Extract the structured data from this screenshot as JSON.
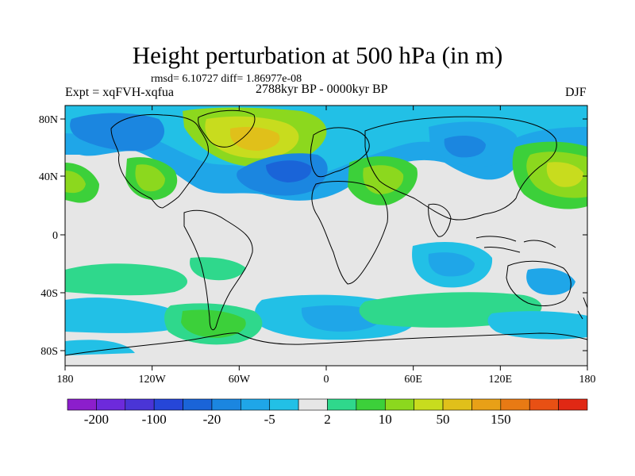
{
  "title": "Height perturbation at 500 hPa (in m)",
  "rmsd_line": "rmsd= 6.10727 diff= 1.86977e-08",
  "experiment": "Expt = xqFVH-xqfua",
  "period": "2788kyr BP - 0000kyr BP",
  "season": "DJF",
  "lat_ticks": [
    "80N",
    "40N",
    "0",
    "40S",
    "80S"
  ],
  "lon_ticks": [
    "180",
    "120W",
    "60W",
    "0",
    "60E",
    "120E",
    "180"
  ],
  "colorbar": {
    "colors": [
      "#8c1ecc",
      "#6d2adb",
      "#4a35d6",
      "#2646d8",
      "#1a64d8",
      "#1b86e0",
      "#1fa6e8",
      "#22c0e6",
      "#e6e6e6",
      "#2fd88c",
      "#3cd03a",
      "#8cd81e",
      "#c8dc1e",
      "#e0c01a",
      "#e8a017",
      "#e87a14",
      "#e85014",
      "#e02814"
    ],
    "labels": [
      "-200",
      "-100",
      "-20",
      "-5",
      "2",
      "10",
      "50",
      "150"
    ]
  }
}
